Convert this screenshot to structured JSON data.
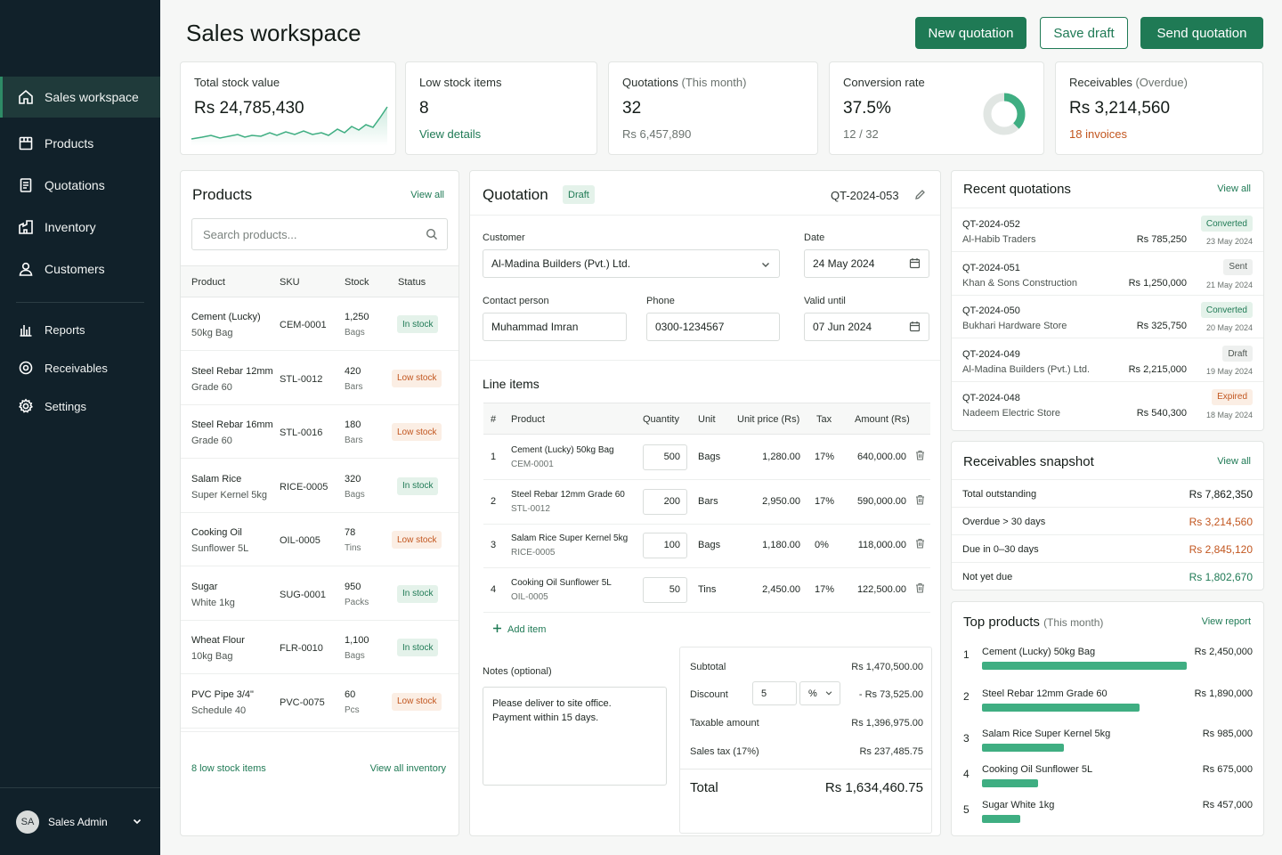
{
  "colors": {
    "accent": "#1f7a55",
    "sidebar": "#11212a",
    "warning": "#c2561f",
    "bar": "#3fae82"
  },
  "sidebar": {
    "items": [
      {
        "label": "Sales workspace",
        "icon": "home-icon"
      },
      {
        "label": "Products",
        "icon": "box-icon"
      },
      {
        "label": "Quotations",
        "icon": "document-icon"
      },
      {
        "label": "Inventory",
        "icon": "warehouse-icon"
      },
      {
        "label": "Customers",
        "icon": "user-icon"
      },
      {
        "label": "Reports",
        "icon": "chart-icon"
      },
      {
        "label": "Receivables",
        "icon": "receivables-icon"
      },
      {
        "label": "Settings",
        "icon": "gear-icon"
      }
    ],
    "user": {
      "initials": "SA",
      "name": "Sales Admin"
    }
  },
  "header": {
    "title": "Sales workspace",
    "new_quotation": "New quotation",
    "save_draft": "Save draft",
    "send_quotation": "Send quotation"
  },
  "kpis": {
    "stock": {
      "label": "Total stock value",
      "value": "Rs 24,785,430"
    },
    "low": {
      "label": "Low stock items",
      "value": "8",
      "link": "View details"
    },
    "quotations": {
      "label": "Quotations",
      "period": "(This month)",
      "value": "32",
      "sub": "Rs 6,457,890"
    },
    "conversion": {
      "label": "Conversion rate",
      "value": "37.5%",
      "sub": "12 / 32",
      "fraction": 0.375
    },
    "receivables": {
      "label": "Receivables",
      "period": "(Overdue)",
      "value": "Rs 3,214,560",
      "link": "18 invoices"
    }
  },
  "products": {
    "title": "Products",
    "view_all": "View all",
    "search_placeholder": "Search products...",
    "columns": [
      "Product",
      "SKU",
      "Stock",
      "Status"
    ],
    "rows": [
      {
        "name": "Cement (Lucky)",
        "variant": "50kg Bag",
        "sku": "CEM-0001",
        "qty": "1,250",
        "unit": "Bags",
        "status": "In stock",
        "low": false
      },
      {
        "name": "Steel Rebar 12mm",
        "variant": "Grade 60",
        "sku": "STL-0012",
        "qty": "420",
        "unit": "Bars",
        "status": "Low stock",
        "low": true
      },
      {
        "name": "Steel Rebar 16mm",
        "variant": "Grade 60",
        "sku": "STL-0016",
        "qty": "180",
        "unit": "Bars",
        "status": "Low stock",
        "low": true
      },
      {
        "name": "Salam Rice",
        "variant": "Super Kernel 5kg",
        "sku": "RICE-0005",
        "qty": "320",
        "unit": "Bags",
        "status": "In stock",
        "low": false
      },
      {
        "name": "Cooking Oil",
        "variant": "Sunflower 5L",
        "sku": "OIL-0005",
        "qty": "78",
        "unit": "Tins",
        "status": "Low stock",
        "low": true
      },
      {
        "name": "Sugar",
        "variant": "White 1kg",
        "sku": "SUG-0001",
        "qty": "950",
        "unit": "Packs",
        "status": "In stock",
        "low": false
      },
      {
        "name": "Wheat Flour",
        "variant": "10kg Bag",
        "sku": "FLR-0010",
        "qty": "1,100",
        "unit": "Bags",
        "status": "In stock",
        "low": false
      },
      {
        "name": "PVC Pipe 3/4\"",
        "variant": "Schedule 40",
        "sku": "PVC-0075",
        "qty": "60",
        "unit": "Pcs",
        "status": "Low stock",
        "low": true
      }
    ],
    "footer_low": "8 low stock items",
    "footer_link": "View all inventory"
  },
  "quotation": {
    "title": "Quotation",
    "status": "Draft",
    "number": "QT-2024-053",
    "customer_label": "Customer",
    "customer": "Al-Madina Builders (Pvt.) Ltd.",
    "date_label": "Date",
    "date": "24 May 2024",
    "contact_label": "Contact person",
    "contact": "Muhammad Imran",
    "phone_label": "Phone",
    "phone": "0300-1234567",
    "valid_label": "Valid until",
    "valid": "07 Jun 2024",
    "line_items_title": "Line items",
    "columns": [
      "#",
      "Product",
      "Quantity",
      "Unit",
      "Unit price (Rs)",
      "Tax",
      "Amount (Rs)"
    ],
    "items": [
      {
        "n": "1",
        "name": "Cement (Lucky) 50kg Bag",
        "sku": "CEM-0001",
        "qty": "500",
        "unit": "Bags",
        "price": "1,280.00",
        "tax": "17%",
        "amount": "640,000.00"
      },
      {
        "n": "2",
        "name": "Steel Rebar 12mm Grade 60",
        "sku": "STL-0012",
        "qty": "200",
        "unit": "Bars",
        "price": "2,950.00",
        "tax": "17%",
        "amount": "590,000.00"
      },
      {
        "n": "3",
        "name": "Salam Rice Super Kernel 5kg",
        "sku": "RICE-0005",
        "qty": "100",
        "unit": "Bags",
        "price": "1,180.00",
        "tax": "0%",
        "amount": "118,000.00"
      },
      {
        "n": "4",
        "name": "Cooking Oil Sunflower 5L",
        "sku": "OIL-0005",
        "qty": "50",
        "unit": "Tins",
        "price": "2,450.00",
        "tax": "17%",
        "amount": "122,500.00"
      }
    ],
    "add_item": "Add item",
    "notes_label": "Notes (optional)",
    "notes": "Please deliver to site office.\nPayment within 15 days.",
    "subtotal_label": "Subtotal",
    "subtotal": "Rs 1,470,500.00",
    "discount_label": "Discount",
    "discount_value": "5",
    "discount_type": "%",
    "discount_amount": "- Rs 73,525.00",
    "taxable_label": "Taxable amount",
    "taxable": "Rs 1,396,975.00",
    "tax_label": "Sales tax (17%)",
    "tax": "Rs 237,485.75",
    "total_label": "Total",
    "total": "Rs 1,634,460.75"
  },
  "recent": {
    "title": "Recent quotations",
    "view_all": "View all",
    "rows": [
      {
        "id": "QT-2024-052",
        "customer": "Al-Habib Traders",
        "amount": "Rs 785,250",
        "status": "Converted",
        "date": "23 May 2024",
        "kind": "in"
      },
      {
        "id": "QT-2024-051",
        "customer": "Khan & Sons Construction",
        "amount": "Rs 1,250,000",
        "status": "Sent",
        "date": "21 May 2024",
        "kind": "sent"
      },
      {
        "id": "QT-2024-050",
        "customer": "Bukhari Hardware Store",
        "amount": "Rs 325,750",
        "status": "Converted",
        "date": "20 May 2024",
        "kind": "in"
      },
      {
        "id": "QT-2024-049",
        "customer": "Al-Madina Builders (Pvt.) Ltd.",
        "amount": "Rs 2,215,000",
        "status": "Draft",
        "date": "19 May 2024",
        "kind": "draft"
      },
      {
        "id": "QT-2024-048",
        "customer": "Nadeem Electric Store",
        "amount": "Rs 540,300",
        "status": "Expired",
        "date": "18 May 2024",
        "kind": "exp"
      }
    ]
  },
  "receivables": {
    "title": "Receivables snapshot",
    "view_all": "View all",
    "rows": [
      {
        "label": "Total outstanding",
        "value": "Rs 7,862,350",
        "tone": "dark"
      },
      {
        "label": "Overdue > 30 days",
        "value": "Rs 3,214,560",
        "tone": "red"
      },
      {
        "label": "Due in 0–30 days",
        "value": "Rs 2,845,120",
        "tone": "red"
      },
      {
        "label": "Not yet due",
        "value": "Rs 1,802,670",
        "tone": "green"
      }
    ]
  },
  "top_products": {
    "title": "Top products",
    "period": "(This month)",
    "link": "View report",
    "rows": [
      {
        "rank": "1",
        "name": "Cement (Lucky) 50kg Bag",
        "value": "Rs 2,450,000",
        "amount": 2450000
      },
      {
        "rank": "2",
        "name": "Steel Rebar 12mm Grade 60",
        "value": "Rs 1,890,000",
        "amount": 1890000
      },
      {
        "rank": "3",
        "name": "Salam Rice Super Kernel 5kg",
        "value": "Rs 985,000",
        "amount": 985000
      },
      {
        "rank": "4",
        "name": "Cooking Oil Sunflower 5L",
        "value": "Rs 675,000",
        "amount": 675000
      },
      {
        "rank": "5",
        "name": "Sugar White 1kg",
        "value": "Rs 457,000",
        "amount": 457000
      }
    ]
  }
}
